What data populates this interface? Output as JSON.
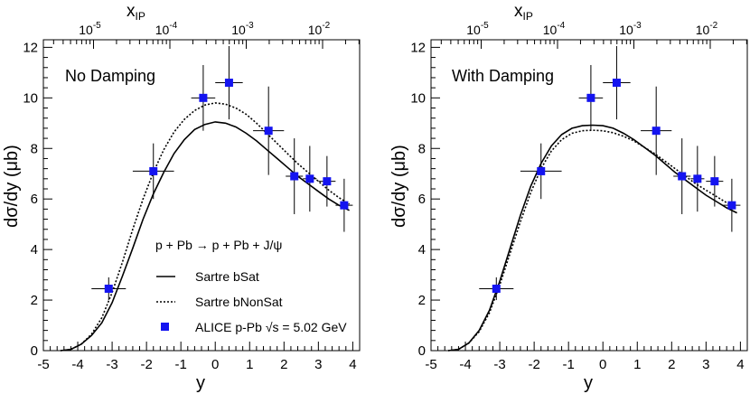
{
  "chart_data": [
    {
      "type": "line",
      "panel_label": "No Damping",
      "xlabel": "y",
      "ylabel": "dσ/dy (μb)",
      "top_axis": {
        "label_main": "x",
        "label_sub": "IP",
        "ticks": [
          {
            "base": "10",
            "exp": "-5"
          },
          {
            "base": "10",
            "exp": "-4"
          },
          {
            "base": "10",
            "exp": "-3"
          },
          {
            "base": "10",
            "exp": "-2"
          }
        ]
      },
      "xlim": [
        -5,
        4.2
      ],
      "ylim": [
        0,
        12.3
      ],
      "xticks": [
        "-5",
        "-4",
        "-3",
        "-2",
        "-1",
        "0",
        "1",
        "2",
        "3",
        "4"
      ],
      "yticks": [
        "0",
        "2",
        "4",
        "6",
        "8",
        "10",
        "12"
      ],
      "legend": {
        "process": "p + Pb → p + Pb + J/ψ",
        "entries": [
          "Sartre bSat",
          "Sartre bNonSat",
          "ALICE p-Pb √s = 5.02 GeV"
        ]
      },
      "series": [
        {
          "name": "Sartre bSat",
          "style": "solid",
          "x": [
            -4.5,
            -4.2,
            -3.9,
            -3.6,
            -3.3,
            -3.0,
            -2.7,
            -2.4,
            -2.1,
            -1.8,
            -1.5,
            -1.2,
            -0.9,
            -0.6,
            -0.3,
            0.0,
            0.3,
            0.6,
            0.9,
            1.2,
            1.5,
            1.8,
            2.1,
            2.4,
            2.7,
            3.0,
            3.3,
            3.6,
            3.9
          ],
          "y": [
            0.0,
            0.05,
            0.25,
            0.6,
            1.1,
            1.9,
            2.95,
            4.05,
            5.2,
            6.2,
            7.05,
            7.8,
            8.35,
            8.75,
            8.95,
            9.05,
            9.0,
            8.85,
            8.6,
            8.3,
            7.95,
            7.6,
            7.25,
            6.9,
            6.6,
            6.3,
            6.0,
            5.75,
            5.55
          ]
        },
        {
          "name": "Sartre bNonSat",
          "style": "dotted",
          "x": [
            -4.5,
            -4.2,
            -3.9,
            -3.6,
            -3.3,
            -3.0,
            -2.7,
            -2.4,
            -2.1,
            -1.8,
            -1.5,
            -1.2,
            -0.9,
            -0.6,
            -0.3,
            0.0,
            0.3,
            0.6,
            0.9,
            1.2,
            1.5,
            1.8,
            2.1,
            2.4,
            2.7,
            3.0,
            3.3,
            3.6,
            3.9
          ],
          "y": [
            0.0,
            0.05,
            0.25,
            0.65,
            1.3,
            2.3,
            3.5,
            4.8,
            6.0,
            7.05,
            7.95,
            8.65,
            9.15,
            9.5,
            9.72,
            9.8,
            9.75,
            9.6,
            9.35,
            9.0,
            8.6,
            8.2,
            7.8,
            7.4,
            7.05,
            6.7,
            6.35,
            6.05,
            5.8
          ]
        },
        {
          "name": "ALICE p-Pb √s = 5.02 GeV",
          "style": "points",
          "points": [
            {
              "x": -3.1,
              "y": 2.45,
              "xerr": 0.5,
              "yerr": 0.45
            },
            {
              "x": -1.8,
              "y": 7.1,
              "xerr": 0.6,
              "yerr": 1.1
            },
            {
              "x": -0.35,
              "y": 10.0,
              "xerr": 0.35,
              "yerr": 1.3
            },
            {
              "x": 0.4,
              "y": 10.6,
              "xerr": 0.4,
              "yerr": 1.45
            },
            {
              "x": 1.55,
              "y": 8.7,
              "xerr": 0.45,
              "yerr": 1.75
            },
            {
              "x": 2.3,
              "y": 6.9,
              "xerr": 0.25,
              "yerr": 1.5
            },
            {
              "x": 2.75,
              "y": 6.8,
              "xerr": 0.2,
              "yerr": 1.3
            },
            {
              "x": 3.25,
              "y": 6.7,
              "xerr": 0.25,
              "yerr": 1.0
            },
            {
              "x": 3.75,
              "y": 5.75,
              "xerr": 0.25,
              "yerr": 1.05
            }
          ]
        }
      ]
    },
    {
      "type": "line",
      "panel_label": "With Damping",
      "xlabel": "y",
      "ylabel": "dσ/dy (μb)",
      "top_axis": {
        "label_main": "x",
        "label_sub": "IP",
        "ticks": [
          {
            "base": "10",
            "exp": "-5"
          },
          {
            "base": "10",
            "exp": "-4"
          },
          {
            "base": "10",
            "exp": "-3"
          },
          {
            "base": "10",
            "exp": "-2"
          }
        ]
      },
      "xlim": [
        -5,
        4.2
      ],
      "ylim": [
        0,
        12.3
      ],
      "xticks": [
        "-5",
        "-4",
        "-3",
        "-2",
        "-1",
        "0",
        "1",
        "2",
        "3",
        "4"
      ],
      "yticks": [
        "0",
        "2",
        "4",
        "6",
        "8",
        "10",
        "12"
      ],
      "series": [
        {
          "name": "Sartre bSat",
          "style": "solid",
          "x": [
            -4.5,
            -4.2,
            -3.9,
            -3.6,
            -3.3,
            -3.0,
            -2.7,
            -2.4,
            -2.1,
            -1.8,
            -1.5,
            -1.2,
            -0.9,
            -0.6,
            -0.3,
            0.0,
            0.3,
            0.6,
            0.9,
            1.2,
            1.5,
            1.8,
            2.1,
            2.4,
            2.7,
            3.0,
            3.3,
            3.6,
            3.9
          ],
          "y": [
            0.0,
            0.05,
            0.3,
            0.8,
            1.6,
            2.75,
            4.05,
            5.35,
            6.5,
            7.4,
            8.1,
            8.55,
            8.8,
            8.9,
            8.92,
            8.9,
            8.8,
            8.6,
            8.35,
            8.05,
            7.75,
            7.4,
            7.05,
            6.75,
            6.45,
            6.15,
            5.9,
            5.65,
            5.45
          ]
        },
        {
          "name": "Sartre bNonSat",
          "style": "dotted",
          "x": [
            -4.5,
            -4.2,
            -3.9,
            -3.6,
            -3.3,
            -3.0,
            -2.7,
            -2.4,
            -2.1,
            -1.8,
            -1.5,
            -1.2,
            -0.9,
            -0.6,
            -0.3,
            0.0,
            0.3,
            0.6,
            0.9,
            1.2,
            1.5,
            1.8,
            2.1,
            2.4,
            2.7,
            3.0,
            3.3,
            3.6,
            3.9
          ],
          "y": [
            0.0,
            0.05,
            0.3,
            0.75,
            1.5,
            2.6,
            3.85,
            5.1,
            6.25,
            7.2,
            7.9,
            8.35,
            8.6,
            8.7,
            8.72,
            8.7,
            8.62,
            8.48,
            8.3,
            8.05,
            7.8,
            7.5,
            7.2,
            6.9,
            6.6,
            6.35,
            6.1,
            5.85,
            5.6
          ]
        },
        {
          "name": "ALICE p-Pb √s = 5.02 GeV",
          "style": "points",
          "points": [
            {
              "x": -3.1,
              "y": 2.45,
              "xerr": 0.5,
              "yerr": 0.45
            },
            {
              "x": -1.8,
              "y": 7.1,
              "xerr": 0.6,
              "yerr": 1.1
            },
            {
              "x": -0.35,
              "y": 10.0,
              "xerr": 0.35,
              "yerr": 1.3
            },
            {
              "x": 0.4,
              "y": 10.6,
              "xerr": 0.4,
              "yerr": 1.45
            },
            {
              "x": 1.55,
              "y": 8.7,
              "xerr": 0.45,
              "yerr": 1.75
            },
            {
              "x": 2.3,
              "y": 6.9,
              "xerr": 0.25,
              "yerr": 1.5
            },
            {
              "x": 2.75,
              "y": 6.8,
              "xerr": 0.2,
              "yerr": 1.3
            },
            {
              "x": 3.25,
              "y": 6.7,
              "xerr": 0.25,
              "yerr": 1.0
            },
            {
              "x": 3.75,
              "y": 5.75,
              "xerr": 0.25,
              "yerr": 1.05
            }
          ]
        }
      ]
    }
  ],
  "colors": {
    "marker": "#1414f0",
    "axis": "#000000",
    "curve": "#000000"
  }
}
